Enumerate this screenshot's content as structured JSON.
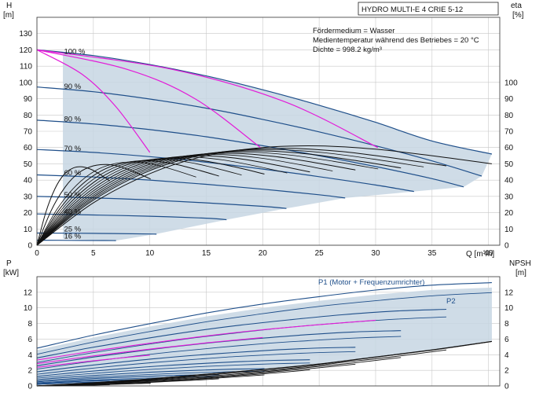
{
  "chart_data": [
    {
      "type": "line",
      "title": "HYDRO MULTI-E 4 CRIE 5-12",
      "xlabel": "Q [m³/h]",
      "ylabel_left": "H [m]",
      "ylabel_right": "eta [%]",
      "ylabel_left_name": "H",
      "ylabel_left_unit": "[m]",
      "ylabel_right_name": "eta",
      "ylabel_right_unit": "[%]",
      "xlim": [
        0,
        41
      ],
      "ylim": [
        0,
        140
      ],
      "ylim_right": [
        0,
        140
      ],
      "x_ticks": [
        0,
        5,
        10,
        15,
        20,
        25,
        30,
        35,
        40
      ],
      "y_ticks": [
        0,
        10,
        20,
        30,
        40,
        50,
        60,
        70,
        80,
        90,
        100,
        110,
        120,
        130
      ],
      "y_ticks_right": [
        0,
        10,
        20,
        30,
        40,
        50,
        60,
        70,
        80,
        90,
        100
      ],
      "grid": true,
      "annotations": [
        "Fördermedium = Wasser",
        "Medientemperatur während des Betriebes = 20 °C",
        "Dichte = 998.2 kg/m³"
      ],
      "speed_labels": [
        {
          "text": "100 %",
          "q": 2.4,
          "h": 117.5
        },
        {
          "text": "90 %",
          "q": 2.4,
          "h": 96
        },
        {
          "text": "80 %",
          "q": 2.4,
          "h": 76
        },
        {
          "text": "70 %",
          "q": 2.4,
          "h": 58
        },
        {
          "text": "60 %",
          "q": 2.4,
          "h": 43
        },
        {
          "text": "50 %",
          "q": 2.4,
          "h": 29.5
        },
        {
          "text": "40 %",
          "q": 2.4,
          "h": 19
        },
        {
          "text": "25 %",
          "q": 2.4,
          "h": 8.5
        },
        {
          "text": "16 %",
          "q": 2.4,
          "h": 4
        }
      ],
      "series": [
        {
          "speed": 1.0,
          "kind": "head",
          "x": [
            0,
            5,
            10,
            15,
            20,
            25,
            30,
            35,
            40.3
          ],
          "y": [
            120,
            116.5,
            111,
            104,
            95.5,
            86,
            75.5,
            64,
            56
          ]
        },
        {
          "speed": 0.9,
          "kind": "head",
          "x": [
            0,
            5,
            10,
            15,
            20,
            25,
            30,
            35,
            39.4
          ],
          "y": [
            97.2,
            94.3,
            89.8,
            84.2,
            77.3,
            69.6,
            61.1,
            51.8,
            42.5
          ]
        },
        {
          "speed": 0.8,
          "kind": "head",
          "x": [
            0,
            5,
            10,
            15,
            20,
            25,
            30,
            35,
            37.8
          ],
          "y": [
            76.8,
            74.5,
            71.0,
            66.6,
            61.1,
            55.0,
            48.3,
            40.9,
            35.8
          ]
        },
        {
          "speed": 0.7,
          "kind": "head",
          "x": [
            0,
            5,
            10,
            15,
            20,
            25,
            30,
            33.4
          ],
          "y": [
            58.8,
            57.0,
            54.4,
            51.0,
            46.8,
            42.1,
            37.0,
            33.0
          ]
        },
        {
          "speed": 0.6,
          "kind": "head",
          "x": [
            0,
            5,
            10,
            15,
            20,
            25,
            27.3
          ],
          "y": [
            43.2,
            41.9,
            40.0,
            37.4,
            34.4,
            31.0,
            29.0
          ]
        },
        {
          "speed": 0.5,
          "kind": "head",
          "x": [
            0,
            5,
            10,
            15,
            20,
            22.1
          ],
          "y": [
            30.0,
            29.1,
            27.8,
            26.0,
            23.9,
            22.6
          ]
        },
        {
          "speed": 0.4,
          "kind": "head",
          "x": [
            0,
            5,
            10,
            15,
            16.8
          ],
          "y": [
            19.2,
            18.6,
            17.8,
            16.6,
            15.7
          ]
        },
        {
          "speed": 0.25,
          "kind": "head",
          "x": [
            0,
            5,
            10,
            10.5
          ],
          "y": [
            7.5,
            7.3,
            6.9,
            6.8
          ]
        },
        {
          "speed": 0.16,
          "kind": "head",
          "x": [
            0,
            3,
            6,
            7.0
          ],
          "y": [
            3.1,
            3.0,
            2.9,
            2.85
          ]
        },
        {
          "name": "",
          "kind": "efficiency",
          "x": [
            0,
            5,
            10,
            15,
            20,
            25,
            30,
            35,
            40.3
          ],
          "y": [
            0,
            26,
            44,
            55,
            60,
            61,
            59,
            55,
            50
          ]
        }
      ],
      "system_curves": [
        {
          "x": [
            0,
            4,
            7,
            10
          ],
          "y": [
            120,
            105,
            85,
            57
          ]
        },
        {
          "x": [
            0,
            8,
            14,
            19.8
          ],
          "y": [
            120,
            108,
            90,
            60
          ]
        },
        {
          "x": [
            0,
            12,
            22,
            30.2
          ],
          "y": [
            120,
            108,
            88,
            60
          ]
        }
      ]
    },
    {
      "type": "line",
      "xlabel": "",
      "ylabel_left": "P [kW]",
      "ylabel_right": "NPSH [m]",
      "ylabel_left_name": "P",
      "ylabel_left_unit": "[kW]",
      "ylabel_right_name": "NPSH",
      "ylabel_right_unit": "[m]",
      "xlim": [
        0,
        41
      ],
      "ylim": [
        0,
        14
      ],
      "ylim_right": [
        0,
        14
      ],
      "y_ticks": [
        0,
        2,
        4,
        6,
        8,
        10,
        12
      ],
      "y_ticks_right": [
        0,
        2,
        4,
        6,
        8,
        10,
        12
      ],
      "grid": true,
      "series": [
        {
          "name": "P1 (Motor + Frequenzumrichter)",
          "kind": "P1",
          "x": [
            0,
            5,
            10,
            15,
            20,
            25,
            30,
            35,
            40.3
          ],
          "y": [
            4.6,
            6.2,
            7.6,
            8.9,
            10.0,
            10.9,
            11.7,
            12.3,
            12.6
          ]
        },
        {
          "name": "P2",
          "kind": "P2",
          "x": [
            0,
            5,
            10,
            15,
            20,
            25,
            30,
            35,
            40.3
          ],
          "y": [
            3.9,
            5.4,
            6.7,
            7.9,
            8.9,
            9.8,
            10.5,
            11.1,
            11.5
          ]
        },
        {
          "name": "",
          "kind": "npsh",
          "x": [
            0,
            5,
            10,
            15,
            20,
            25,
            30,
            35,
            40.3
          ],
          "y": [
            0,
            0.4,
            0.9,
            1.5,
            2.1,
            2.8,
            3.7,
            4.6,
            5.7
          ]
        }
      ]
    }
  ]
}
